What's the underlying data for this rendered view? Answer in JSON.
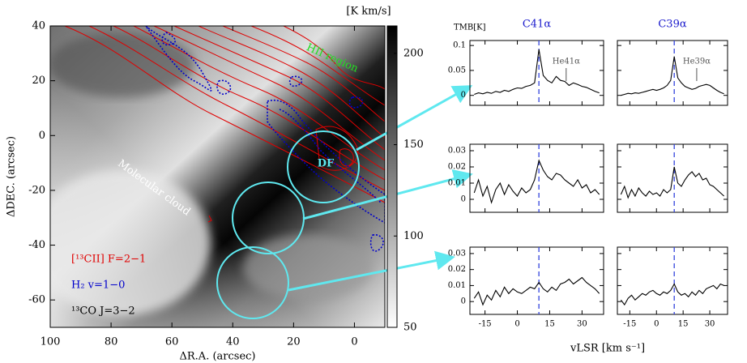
{
  "chart_data": [
    {
      "type": "map",
      "xlabel": "ΔR.A. (arcsec)",
      "ylabel": "ΔDEC. (arcsec)",
      "xlim": [
        100,
        -10
      ],
      "ylim": [
        -70,
        40
      ],
      "xticks": [
        100,
        80,
        60,
        40,
        20,
        0
      ],
      "yticks": [
        -60,
        -40,
        -20,
        0,
        20,
        40
      ],
      "annotations": [
        "HII region",
        "Molecular cloud",
        "DF"
      ],
      "legend": [
        {
          "name": "[¹³CII] F=2−1",
          "color": "#e00000"
        },
        {
          "name": "H₂ v=1−0",
          "color": "#0000cc"
        },
        {
          "name": "¹³CO J=3−2",
          "color": "#000000"
        }
      ]
    },
    {
      "type": "colorbar",
      "label": "[K km/s]",
      "ylim": [
        50,
        215
      ],
      "yticks": [
        50,
        100,
        150,
        200
      ]
    },
    {
      "type": "line",
      "title": "C41α",
      "ylabel": "TMB[K]",
      "annotation": "He41α",
      "vline": 10,
      "xlim": [
        -22,
        40
      ],
      "xticks": [
        -15,
        0,
        15,
        30
      ],
      "ylim": [
        -0.02,
        0.11
      ],
      "yticks": [
        0,
        0.05,
        0.1
      ],
      "x": [
        -20,
        -18,
        -16,
        -14,
        -12,
        -10,
        -8,
        -6,
        -4,
        -2,
        0,
        2,
        4,
        6,
        8,
        10,
        12,
        14,
        16,
        18,
        20,
        22,
        24,
        26,
        28,
        30,
        32,
        34,
        36,
        38
      ],
      "values": [
        0.002,
        0.005,
        0.003,
        0.006,
        0.004,
        0.008,
        0.006,
        0.01,
        0.008,
        0.012,
        0.015,
        0.014,
        0.018,
        0.02,
        0.025,
        0.092,
        0.04,
        0.03,
        0.025,
        0.038,
        0.03,
        0.028,
        0.02,
        0.025,
        0.022,
        0.018,
        0.016,
        0.012,
        0.008,
        0.005
      ]
    },
    {
      "type": "line",
      "title": "C39α",
      "annotation": "He39α",
      "vline": 10,
      "xlim": [
        -22,
        40
      ],
      "xticks": [
        -15,
        0,
        15,
        30
      ],
      "ylim": [
        -0.02,
        0.11
      ],
      "yticks": [
        0,
        0.05,
        0.1
      ],
      "x": [
        -20,
        -18,
        -16,
        -14,
        -12,
        -10,
        -8,
        -6,
        -4,
        -2,
        0,
        2,
        4,
        6,
        8,
        10,
        12,
        14,
        16,
        18,
        20,
        22,
        24,
        26,
        28,
        30,
        32,
        34,
        36,
        38
      ],
      "values": [
        0,
        0.002,
        0.004,
        0.003,
        0.005,
        0.004,
        0.006,
        0.008,
        0.01,
        0.012,
        0.01,
        0.012,
        0.015,
        0.02,
        0.03,
        0.078,
        0.035,
        0.025,
        0.018,
        0.015,
        0.012,
        0.014,
        0.018,
        0.02,
        0.022,
        0.02,
        0.015,
        0.01,
        0.006,
        0.003
      ]
    },
    {
      "type": "line",
      "vline": 10,
      "xlim": [
        -22,
        40
      ],
      "xticks": [
        -15,
        0,
        15,
        30
      ],
      "ylim": [
        -0.008,
        0.034
      ],
      "yticks": [
        0,
        0.01,
        0.02,
        0.03
      ],
      "x": [
        -20,
        -18,
        -16,
        -14,
        -12,
        -10,
        -8,
        -6,
        -4,
        -2,
        0,
        2,
        4,
        6,
        8,
        10,
        12,
        14,
        16,
        18,
        20,
        22,
        24,
        26,
        28,
        30,
        32,
        34,
        36,
        38
      ],
      "values": [
        0.004,
        0.012,
        0.002,
        0.008,
        -0.002,
        0.006,
        0.01,
        0.003,
        0.009,
        0.005,
        0.002,
        0.007,
        0.004,
        0.006,
        0.012,
        0.024,
        0.018,
        0.014,
        0.012,
        0.016,
        0.015,
        0.012,
        0.01,
        0.008,
        0.012,
        0.007,
        0.009,
        0.004,
        0.006,
        0.003
      ]
    },
    {
      "type": "line",
      "vline": 10,
      "xlim": [
        -22,
        40
      ],
      "xticks": [
        -15,
        0,
        15,
        30
      ],
      "ylim": [
        -0.008,
        0.034
      ],
      "yticks": [
        0,
        0.01,
        0.02,
        0.03
      ],
      "x": [
        -20,
        -18,
        -16,
        -14,
        -12,
        -10,
        -8,
        -6,
        -4,
        -2,
        0,
        2,
        4,
        6,
        8,
        10,
        12,
        14,
        16,
        18,
        20,
        22,
        24,
        26,
        28,
        30,
        32,
        34,
        36,
        38
      ],
      "values": [
        0.003,
        0.008,
        0.001,
        0.006,
        0.002,
        0.007,
        0.004,
        0.002,
        0.005,
        0.003,
        0.004,
        0.002,
        0.006,
        0.004,
        0.006,
        0.02,
        0.01,
        0.008,
        0.012,
        0.015,
        0.017,
        0.014,
        0.016,
        0.012,
        0.013,
        0.009,
        0.008,
        0.006,
        0.004,
        0.002
      ]
    },
    {
      "type": "line",
      "vline": 10,
      "xlim": [
        -22,
        40
      ],
      "xticks": [
        -15,
        0,
        15,
        30
      ],
      "ylim": [
        -0.008,
        0.034
      ],
      "yticks": [
        0,
        0.01,
        0.02,
        0.03
      ],
      "x": [
        -20,
        -18,
        -16,
        -14,
        -12,
        -10,
        -8,
        -6,
        -4,
        -2,
        0,
        2,
        4,
        6,
        8,
        10,
        12,
        14,
        16,
        18,
        20,
        22,
        24,
        26,
        28,
        30,
        32,
        34,
        36,
        38
      ],
      "values": [
        0.002,
        0.006,
        -0.002,
        0.004,
        0.001,
        0.007,
        0.003,
        0.009,
        0.005,
        0.008,
        0.006,
        0.005,
        0.007,
        0.009,
        0.008,
        0.012,
        0.008,
        0.006,
        0.009,
        0.007,
        0.011,
        0.012,
        0.014,
        0.011,
        0.013,
        0.015,
        0.012,
        0.01,
        0.008,
        0.005
      ]
    },
    {
      "type": "line",
      "vline": 10,
      "xlabel": "vLSR [km s⁻¹]",
      "xlim": [
        -22,
        40
      ],
      "xticks": [
        -15,
        0,
        15,
        30
      ],
      "ylim": [
        -0.008,
        0.034
      ],
      "yticks": [
        0,
        0.01,
        0.02,
        0.03
      ],
      "x": [
        -20,
        -18,
        -16,
        -14,
        -12,
        -10,
        -8,
        -6,
        -4,
        -2,
        0,
        2,
        4,
        6,
        8,
        10,
        12,
        14,
        16,
        18,
        20,
        22,
        24,
        26,
        28,
        30,
        32,
        34,
        36,
        38
      ],
      "values": [
        0.001,
        -0.002,
        0.002,
        0.004,
        0.001,
        0.003,
        0.005,
        0.004,
        0.006,
        0.007,
        0.005,
        0.004,
        0.006,
        0.005,
        0.007,
        0.011,
        0.006,
        0.004,
        0.005,
        0.003,
        0.006,
        0.004,
        0.007,
        0.005,
        0.008,
        0.009,
        0.01,
        0.008,
        0.011,
        0.01
      ]
    }
  ]
}
